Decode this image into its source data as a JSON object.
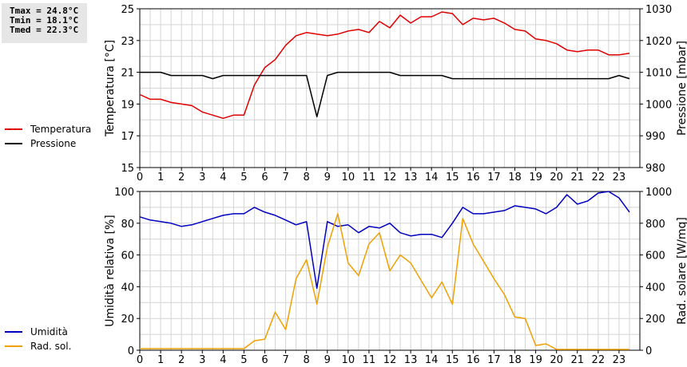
{
  "stats": {
    "tmax": "Tmax = 24.8°C",
    "tmin": "Tmin = 18.1°C",
    "tmed": "Tmed = 22.3°C"
  },
  "chart_data": [
    {
      "type": "line",
      "xlabel": "",
      "ylabel": "Temperatura [°C]",
      "ylabel_right": "Pressione [mbar]",
      "xlim": [
        0,
        24
      ],
      "xticks": [
        0,
        1,
        2,
        3,
        4,
        5,
        6,
        7,
        8,
        9,
        10,
        11,
        12,
        13,
        14,
        15,
        16,
        17,
        18,
        19,
        20,
        21,
        22,
        23
      ],
      "ylim": [
        15,
        25
      ],
      "yticks": [
        15,
        17,
        19,
        21,
        23,
        25
      ],
      "ylim_right": [
        980,
        1030
      ],
      "yticks_right": [
        980,
        990,
        1000,
        1010,
        1020,
        1030
      ],
      "grid": true,
      "legend": "left",
      "series": [
        {
          "name": "Temperatura",
          "color": "#e00000",
          "axis": "left",
          "x": [
            0,
            0.5,
            1,
            1.5,
            2,
            2.5,
            3,
            3.5,
            4,
            4.5,
            5,
            5.5,
            6,
            6.5,
            7,
            7.5,
            8,
            8.5,
            9,
            9.5,
            10,
            10.5,
            11,
            11.5,
            12,
            12.5,
            13,
            13.5,
            14,
            14.5,
            15,
            15.5,
            16,
            16.5,
            17,
            17.5,
            18,
            18.5,
            19,
            19.5,
            20,
            20.5,
            21,
            21.5,
            22,
            22.5,
            23,
            23.5
          ],
          "values": [
            19.6,
            19.3,
            19.3,
            19.1,
            19.0,
            18.9,
            18.5,
            18.3,
            18.1,
            18.3,
            18.3,
            20.2,
            21.3,
            21.8,
            22.7,
            23.3,
            23.5,
            23.4,
            23.3,
            23.4,
            23.6,
            23.7,
            23.5,
            24.2,
            23.8,
            24.6,
            24.1,
            24.5,
            24.5,
            24.8,
            24.7,
            24.0,
            24.4,
            24.3,
            24.4,
            24.1,
            23.7,
            23.6,
            23.1,
            23.0,
            22.8,
            22.4,
            22.3,
            22.4,
            22.4,
            22.1,
            22.1,
            22.2
          ]
        },
        {
          "name": "Pressione",
          "color": "#000000",
          "axis": "right",
          "x": [
            0,
            0.5,
            1,
            1.5,
            2,
            2.5,
            3,
            3.5,
            4,
            4.5,
            5,
            5.5,
            6,
            6.5,
            7,
            7.5,
            8,
            8.5,
            9,
            9.5,
            10,
            10.5,
            11,
            11.5,
            12,
            12.5,
            13,
            13.5,
            14,
            14.5,
            15,
            15.5,
            16,
            16.5,
            17,
            17.5,
            18,
            18.5,
            19,
            19.5,
            20,
            20.5,
            21,
            21.5,
            22,
            22.5,
            23,
            23.5
          ],
          "values": [
            1010,
            1010,
            1010,
            1009,
            1009,
            1009,
            1009,
            1008,
            1009,
            1009,
            1009,
            1009,
            1009,
            1009,
            1009,
            1009,
            1009,
            996,
            1009,
            1010,
            1010,
            1010,
            1010,
            1010,
            1010,
            1009,
            1009,
            1009,
            1009,
            1009,
            1008,
            1008,
            1008,
            1008,
            1008,
            1008,
            1008,
            1008,
            1008,
            1008,
            1008,
            1008,
            1008,
            1008,
            1008,
            1008,
            1009,
            1008
          ]
        }
      ]
    },
    {
      "type": "line",
      "xlabel": "",
      "ylabel": "Umidità relativa [%]",
      "ylabel_right": "Rad. solare [W/mq]",
      "xlim": [
        0,
        24
      ],
      "xticks": [
        0,
        1,
        2,
        3,
        4,
        5,
        6,
        7,
        8,
        9,
        10,
        11,
        12,
        13,
        14,
        15,
        16,
        17,
        18,
        19,
        20,
        21,
        22,
        23
      ],
      "ylim": [
        0,
        100
      ],
      "yticks": [
        0,
        20,
        40,
        60,
        80,
        100
      ],
      "ylim_right": [
        0,
        1000
      ],
      "yticks_right": [
        0,
        200,
        400,
        600,
        800,
        1000
      ],
      "grid": true,
      "legend": "left",
      "series": [
        {
          "name": "Umidità",
          "color": "#0000c0",
          "axis": "left",
          "x": [
            0,
            0.5,
            1,
            1.5,
            2,
            2.5,
            3,
            3.5,
            4,
            4.5,
            5,
            5.5,
            6,
            6.5,
            7,
            7.5,
            8,
            8.5,
            9,
            9.5,
            10,
            10.5,
            11,
            11.5,
            12,
            12.5,
            13,
            13.5,
            14,
            14.5,
            15,
            15.5,
            16,
            16.5,
            17,
            17.5,
            18,
            18.5,
            19,
            19.5,
            20,
            20.5,
            21,
            21.5,
            22,
            22.5,
            23,
            23.5
          ],
          "values": [
            84,
            82,
            81,
            80,
            78,
            79,
            81,
            83,
            85,
            86,
            86,
            90,
            87,
            85,
            82,
            79,
            81,
            39,
            81,
            78,
            79,
            74,
            78,
            77,
            80,
            74,
            72,
            73,
            73,
            71,
            80,
            90,
            86,
            86,
            87,
            88,
            91,
            90,
            89,
            86,
            90,
            98,
            92,
            94,
            99,
            100,
            96,
            87
          ]
        },
        {
          "name": "Rad. sol.",
          "color": "#f0a000",
          "axis": "right",
          "x": [
            0,
            0.5,
            1,
            1.5,
            2,
            2.5,
            3,
            3.5,
            4,
            4.5,
            5,
            5.5,
            6,
            6.5,
            7,
            7.5,
            8,
            8.5,
            9,
            9.5,
            10,
            10.5,
            11,
            11.5,
            12,
            12.5,
            13,
            13.5,
            14,
            14.5,
            15,
            15.5,
            16,
            16.5,
            17,
            17.5,
            18,
            18.5,
            19,
            19.5,
            20,
            20.5,
            21,
            21.5,
            22,
            22.5,
            23,
            23.5
          ],
          "values": [
            10,
            10,
            10,
            10,
            10,
            10,
            10,
            10,
            10,
            10,
            10,
            60,
            70,
            240,
            130,
            450,
            570,
            290,
            650,
            860,
            550,
            470,
            670,
            740,
            500,
            600,
            550,
            440,
            330,
            430,
            290,
            830,
            670,
            560,
            450,
            350,
            210,
            200,
            30,
            40,
            5,
            5,
            5,
            5,
            5,
            5,
            5,
            5
          ]
        }
      ]
    }
  ]
}
